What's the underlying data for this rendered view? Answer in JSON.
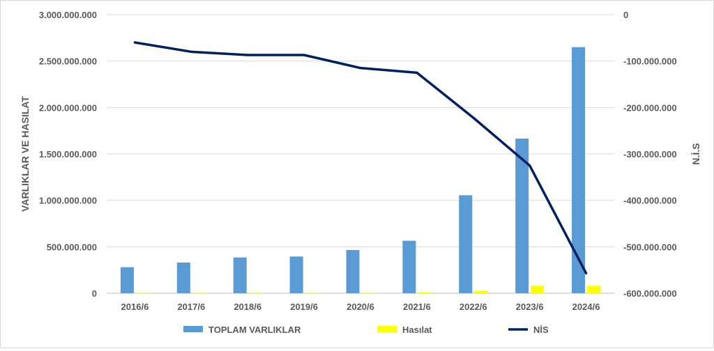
{
  "chart_data": {
    "type": "bar",
    "categories": [
      "2016/6",
      "2017/6",
      "2018/6",
      "2019/6",
      "2020/6",
      "2021/6",
      "2022/6",
      "2023/6",
      "2024/6"
    ],
    "series": [
      {
        "name": "TOPLAM VARLIKLAR",
        "type": "bar",
        "axis": "left",
        "color": "#5b9bd5",
        "values": [
          280000000,
          330000000,
          385000000,
          395000000,
          465000000,
          565000000,
          1055000000,
          1665000000,
          2650000000
        ]
      },
      {
        "name": "Hasılat",
        "type": "bar",
        "axis": "left",
        "color": "#ffff00",
        "values": [
          3000000,
          3000000,
          3000000,
          3000000,
          3000000,
          8000000,
          25000000,
          80000000,
          80000000
        ]
      },
      {
        "name": "NİS",
        "type": "line",
        "axis": "right",
        "color": "#002060",
        "values": [
          -60000000,
          -80000000,
          -87000000,
          -87000000,
          -115000000,
          -125000000,
          -222000000,
          -325000000,
          -557000000
        ]
      }
    ],
    "y_left": {
      "label": "VARLIKLAR VE HASILAT",
      "ylim": [
        0,
        3000000000
      ],
      "ticks": [
        0,
        500000000,
        1000000000,
        1500000000,
        2000000000,
        2500000000,
        3000000000
      ],
      "tick_labels": [
        "0",
        "500.000.000",
        "1.000.000.000",
        "1.500.000.000",
        "2.000.000.000",
        "2.500.000.000",
        "3.000.000.000"
      ]
    },
    "y_right": {
      "label": "N.İ.S",
      "ylim": [
        -600000000,
        0
      ],
      "ticks": [
        0,
        -100000000,
        -200000000,
        -300000000,
        -400000000,
        -500000000,
        -600000000
      ],
      "tick_labels": [
        "0",
        "-100.000.000",
        "-200.000.000",
        "-300.000.000",
        "-400.000.000",
        "-500.000.000",
        "-600.000.000"
      ]
    },
    "grid": true,
    "legend_position": "bottom"
  }
}
